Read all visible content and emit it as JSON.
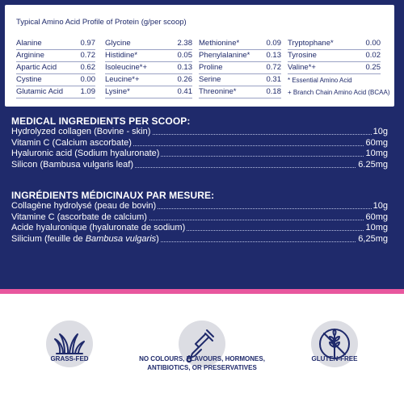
{
  "amino_table": {
    "title": "Typical Amino Acid Profile of Protein (g/per scoop)",
    "col1": [
      {
        "name": "Alanine",
        "value": "0.97"
      },
      {
        "name": "Arginine",
        "value": "0.72"
      },
      {
        "name": "Apartic Acid",
        "value": "0.62"
      },
      {
        "name": "Cystine",
        "value": "0.00"
      },
      {
        "name": "Glutamic Acid",
        "value": "1.09"
      }
    ],
    "col2": [
      {
        "name": "Glycine",
        "value": "2.38"
      },
      {
        "name": "Histidine*",
        "value": "0.05"
      },
      {
        "name": "Isoleucine*+",
        "value": "0.13"
      },
      {
        "name": "Leucine*+",
        "value": "0.26"
      },
      {
        "name": "Lysine*",
        "value": "0.41"
      }
    ],
    "col3": [
      {
        "name": "Methionine*",
        "value": "0.09"
      },
      {
        "name": "Phenylalanine*",
        "value": "0.13"
      },
      {
        "name": "Proline",
        "value": "0.72"
      },
      {
        "name": "Serine",
        "value": "0.31"
      },
      {
        "name": "Threonine*",
        "value": "0.18"
      }
    ],
    "col4": [
      {
        "name": "Tryptophane*",
        "value": "0.00"
      },
      {
        "name": "Tyrosine",
        "value": "0.02"
      },
      {
        "name": "Valine*+",
        "value": "0.25"
      }
    ],
    "note_essential": "* Essential Amino Acid",
    "note_bcaa": "+ Branch Chain Amino Acid (BCAA)"
  },
  "medical_en": {
    "heading": "MEDICAL INGREDIENTS PER SCOOP:",
    "items": [
      {
        "name": "Hydrolyzed collagen (Bovine - skin)",
        "amount": "10g"
      },
      {
        "name": "Vitamin C (Calcium ascorbate)",
        "amount": "60mg"
      },
      {
        "name": "Hyaluronic acid (Sodium hyaluronate)",
        "amount": "10mg"
      },
      {
        "name": "Silicon (Bambusa vulgaris leaf)",
        "amount": "6.25mg"
      }
    ]
  },
  "medical_fr": {
    "heading": "INGRÉDIENTS MÉDICINAUX PAR MESURE:",
    "items": [
      {
        "name": "Collagène hydrolysé (peau de bovin)",
        "amount": "10g"
      },
      {
        "name": "Vitamine C (ascorbate de calcium)",
        "amount": "60mg"
      },
      {
        "name": "Acide hyaluronique (hyaluronate de sodium)",
        "amount": "10mg"
      },
      {
        "name_prefix": "Silicium (feuille de ",
        "name_italic": "Bambusa vulgaris",
        "name_suffix": ")",
        "amount": "6,25mg"
      }
    ]
  },
  "badges": [
    {
      "icon": "grass-icon",
      "label_lines": [
        "GRASS-FED"
      ]
    },
    {
      "icon": "dropper-icon",
      "label_lines": [
        "NO COLOURS, FLAVOURS, HORMONES,",
        "ANTIBIOTICS, OR PRESERVATIVES"
      ]
    },
    {
      "icon": "no-wheat-icon",
      "label_lines": [
        "GLUTEN-FREE"
      ]
    }
  ],
  "colors": {
    "navy": "#1f2a6b",
    "pink": "#e8579e",
    "icon_bg": "#dcdde3"
  }
}
